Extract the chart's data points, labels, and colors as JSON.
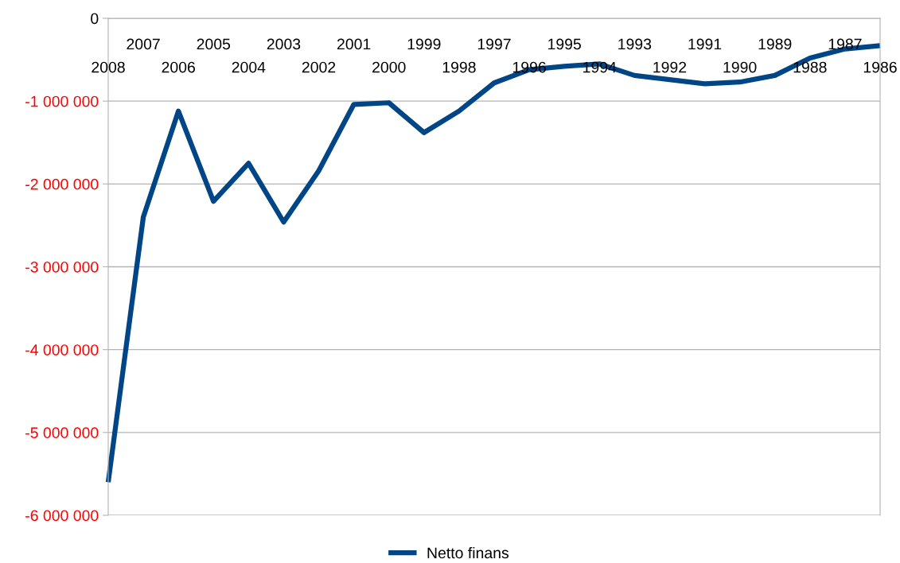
{
  "chart_data": {
    "type": "line",
    "categories": [
      "2008",
      "2007",
      "2006",
      "2005",
      "2004",
      "2003",
      "2002",
      "2001",
      "2000",
      "1999",
      "1998",
      "1997",
      "1996",
      "1995",
      "1994",
      "1993",
      "1992",
      "1991",
      "1990",
      "1989",
      "1988",
      "1987",
      "1986"
    ],
    "series": [
      {
        "name": "Netto finans",
        "color": "#004586",
        "values": [
          -5600000,
          -2400000,
          -1120000,
          -2210000,
          -1750000,
          -2460000,
          -1840000,
          -1040000,
          -1020000,
          -1380000,
          -1120000,
          -780000,
          -620000,
          -580000,
          -550000,
          -690000,
          -740000,
          -790000,
          -770000,
          -690000,
          -480000,
          -370000,
          -330000
        ]
      }
    ],
    "ylim": [
      -6000000,
      0
    ],
    "yticks": [
      {
        "value": -6000000,
        "label": "-6 000 000"
      },
      {
        "value": -5000000,
        "label": "-5 000 000"
      },
      {
        "value": -4000000,
        "label": "-4 000 000"
      },
      {
        "value": -3000000,
        "label": "-3 000 000"
      },
      {
        "value": -2000000,
        "label": "-2 000 000"
      },
      {
        "value": -1000000,
        "label": "-1 000 000"
      },
      0
    ],
    "grid": "y",
    "legend": "bottom",
    "marker": "none",
    "line_style": "solid"
  }
}
